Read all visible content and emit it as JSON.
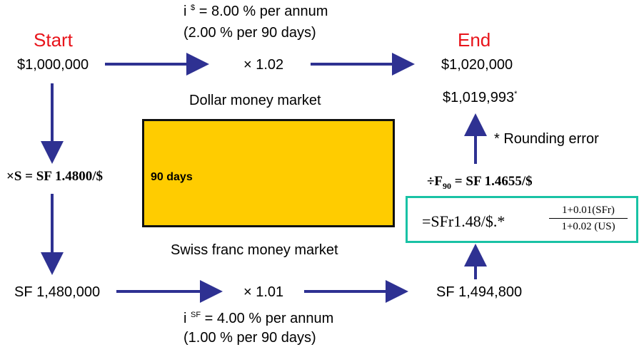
{
  "top": {
    "rate_prefix": "i",
    "rate_super": "$",
    "rate_text": "= 8.00 % per annum",
    "rate_period": "(2.00 % per 90 days)"
  },
  "start_label": "Start",
  "end_label": "End",
  "start_amount": "$1,000,000",
  "dollar_multiplier": "×  1.02",
  "end_amount": "$1,020,000",
  "dollar_market": "Dollar money market",
  "alt_end_amount": "$1,019,993",
  "alt_end_mark": "*",
  "rounding_note": "* Rounding error",
  "spot_label": "×S = SF 1.4800/$",
  "box_label": "90 days",
  "forward": {
    "prefix": "÷F",
    "sub": "90",
    "suffix": " = SF 1.4655/$"
  },
  "formula": {
    "main": "=SFr1.48/$.*",
    "numerator": "1+0.01(SFr)",
    "denominator": "1+0.02 (US)"
  },
  "swiss_market": "Swiss franc money market",
  "sf_start": "SF 1,480,000",
  "sf_multiplier": "×  1.01",
  "sf_end": "SF 1,494,800",
  "bottom": {
    "rate_prefix": "i",
    "rate_super": "SF",
    "rate_text": "= 4.00 % per annum",
    "rate_period": "(1.00 % per 90 days)"
  },
  "colors": {
    "arrow": "#2e3192",
    "start_end": "#e8141b",
    "box_fill": "#ffcc00",
    "formula_border": "#19c2a5"
  }
}
